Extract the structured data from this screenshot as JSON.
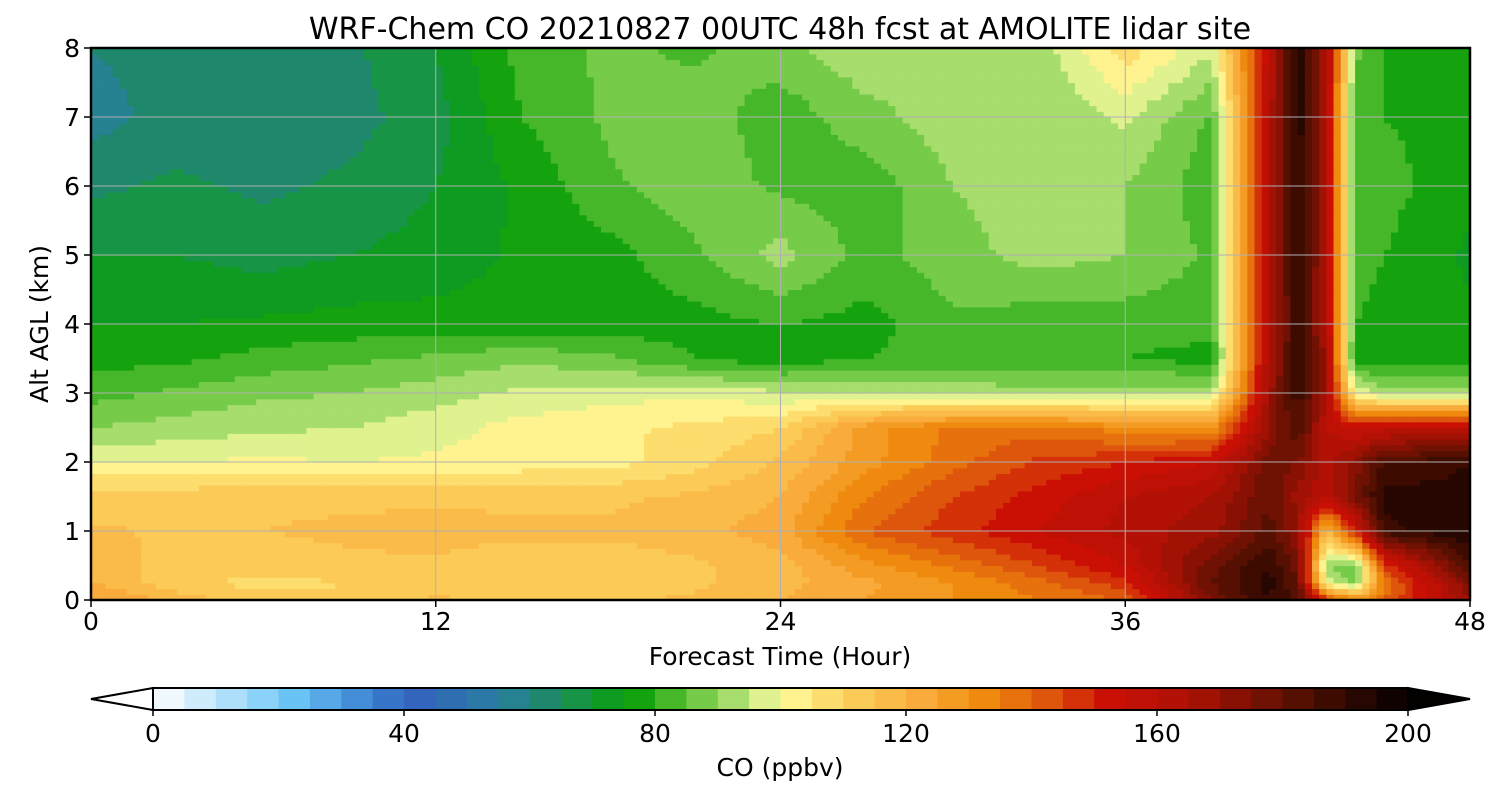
{
  "chart_data": {
    "type": "heatmap",
    "title": "WRF-Chem CO  20210827 00UTC 48h fcst at AMOLITE lidar site",
    "xlabel": "Forecast Time (Hour)",
    "ylabel": "Alt AGL (km)",
    "xlim": [
      0,
      48
    ],
    "ylim": [
      0,
      8
    ],
    "x_ticks": [
      0,
      12,
      24,
      36,
      48
    ],
    "y_ticks": [
      0,
      1,
      2,
      3,
      4,
      5,
      6,
      7,
      8
    ],
    "grid": true,
    "x": [
      0,
      3,
      6,
      9,
      12,
      15,
      18,
      21,
      24,
      27,
      30,
      33,
      36,
      39,
      41,
      42,
      43,
      44,
      45,
      48
    ],
    "y": [
      0,
      0.25,
      0.5,
      1,
      1.5,
      2,
      2.5,
      3,
      3.5,
      4,
      5,
      6,
      7,
      8
    ],
    "z": [
      [
        126,
        118,
        112,
        112,
        116,
        114,
        114,
        116,
        120,
        125,
        130,
        135,
        140,
        175,
        190,
        185,
        150,
        130,
        140,
        170
      ],
      [
        120,
        112,
        108,
        110,
        112,
        110,
        112,
        114,
        118,
        124,
        130,
        138,
        148,
        180,
        192,
        180,
        100,
        88,
        135,
        175
      ],
      [
        118,
        113,
        112,
        114,
        114,
        112,
        112,
        114,
        118,
        128,
        136,
        145,
        155,
        178,
        190,
        178,
        90,
        85,
        145,
        185
      ],
      [
        116,
        114,
        115,
        116,
        117,
        116,
        116,
        118,
        123,
        140,
        148,
        155,
        162,
        168,
        182,
        170,
        118,
        150,
        188,
        195
      ],
      [
        112,
        113,
        114,
        114,
        114,
        114,
        114,
        116,
        120,
        135,
        145,
        152,
        160,
        165,
        180,
        168,
        160,
        175,
        192,
        192
      ],
      [
        100,
        100,
        101,
        100,
        101,
        102,
        103,
        108,
        116,
        128,
        138,
        146,
        150,
        155,
        178,
        175,
        162,
        172,
        185,
        190
      ],
      [
        90,
        92,
        94,
        95,
        98,
        102,
        104,
        106,
        110,
        128,
        136,
        138,
        132,
        130,
        170,
        185,
        160,
        155,
        158,
        160
      ],
      [
        83,
        86,
        89,
        90,
        93,
        96,
        98,
        99,
        96,
        95,
        94,
        92,
        93,
        94,
        168,
        188,
        168,
        100,
        93,
        92
      ],
      [
        78,
        79,
        82,
        84,
        86,
        89,
        86,
        80,
        77,
        80,
        82,
        80,
        80,
        78,
        165,
        190,
        168,
        78,
        77,
        77
      ],
      [
        75,
        75,
        76,
        77,
        77,
        77,
        77,
        78,
        80,
        78,
        84,
        82,
        82,
        82,
        162,
        190,
        165,
        80,
        78,
        76
      ],
      [
        70,
        70,
        68,
        70,
        72,
        76,
        78,
        84,
        92,
        83,
        88,
        92,
        90,
        84,
        162,
        192,
        165,
        82,
        80,
        74
      ],
      [
        64,
        66,
        64,
        66,
        70,
        76,
        84,
        88,
        84,
        82,
        90,
        93,
        90,
        82,
        162,
        192,
        165,
        82,
        82,
        76
      ],
      [
        58,
        62,
        62,
        63,
        68,
        80,
        86,
        88,
        82,
        88,
        93,
        90,
        96,
        84,
        162,
        194,
        165,
        84,
        80,
        78
      ],
      [
        60,
        62,
        63,
        64,
        70,
        82,
        86,
        84,
        88,
        94,
        92,
        92,
        108,
        96,
        158,
        194,
        165,
        86,
        80,
        76
      ]
    ],
    "colorbar": {
      "label": "CO  (ppbv)",
      "min": 0,
      "max": 200,
      "step": 5,
      "ticks": [
        0,
        40,
        80,
        120,
        160,
        200
      ],
      "extend": "both",
      "stops": [
        [
          0,
          "#ffffff"
        ],
        [
          10,
          "#bfe6fb"
        ],
        [
          22,
          "#6cc6f6"
        ],
        [
          35,
          "#3a7fd0"
        ],
        [
          42,
          "#3264bc"
        ],
        [
          55,
          "#2a7ea2"
        ],
        [
          62,
          "#20866f"
        ],
        [
          70,
          "#159b35"
        ],
        [
          76,
          "#059b06"
        ],
        [
          84,
          "#55be30"
        ],
        [
          94,
          "#b4e278"
        ],
        [
          100,
          "#fefea0"
        ],
        [
          110,
          "#fdd25c"
        ],
        [
          122,
          "#f9ad3e"
        ],
        [
          132,
          "#f08d0e"
        ],
        [
          142,
          "#df5a0c"
        ],
        [
          152,
          "#cb0f05"
        ],
        [
          165,
          "#ad1205"
        ],
        [
          182,
          "#581002"
        ],
        [
          200,
          "#030000"
        ]
      ]
    }
  }
}
